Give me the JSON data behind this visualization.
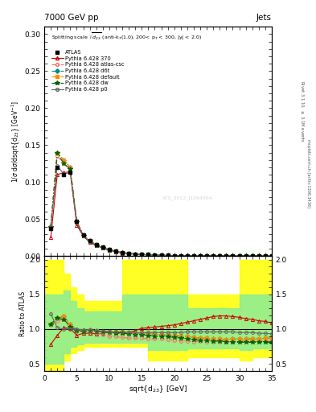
{
  "title_top": "7000 GeV pp",
  "title_right": "Jets",
  "watermark": "ATS_2012_I1094564",
  "x": [
    1,
    2,
    3,
    4,
    5,
    6,
    7,
    8,
    9,
    10,
    11,
    12,
    13,
    14,
    15,
    16,
    17,
    18,
    19,
    20,
    21,
    22,
    23,
    24,
    25,
    26,
    27,
    28,
    29,
    30,
    31,
    32,
    33,
    34,
    35
  ],
  "atlas_y": [
    0.037,
    0.12,
    0.11,
    0.113,
    0.047,
    0.029,
    0.021,
    0.016,
    0.012,
    0.009,
    0.007,
    0.005,
    0.004,
    0.003,
    0.002,
    0.002,
    0.0015,
    0.001,
    0.001,
    0.0008,
    0.0006,
    0.0005,
    0.0004,
    0.0003,
    0.0003,
    0.0002,
    0.0002,
    0.0001,
    0.0001,
    0.0001,
    0.0001,
    0.0001,
    0.0001,
    0.0001,
    0.0001
  ],
  "p370_y": [
    0.025,
    0.11,
    0.113,
    0.114,
    0.042,
    0.027,
    0.019,
    0.014,
    0.011,
    0.008,
    0.006,
    0.004,
    0.003,
    0.003,
    0.002,
    0.0018,
    0.0014,
    0.001,
    0.0009,
    0.0007,
    0.0006,
    0.0005,
    0.0004,
    0.0003,
    0.0003,
    0.0002,
    0.0002,
    0.0001,
    0.0001,
    0.0001,
    0.0001,
    0.0001,
    0.0001,
    0.0001,
    0.0001
  ],
  "atlas_csc_y": [
    0.04,
    0.135,
    0.125,
    0.116,
    0.046,
    0.028,
    0.02,
    0.015,
    0.011,
    0.008,
    0.006,
    0.005,
    0.003,
    0.003,
    0.002,
    0.0017,
    0.0013,
    0.001,
    0.0008,
    0.0006,
    0.0005,
    0.0004,
    0.0003,
    0.0003,
    0.0002,
    0.0002,
    0.0001,
    0.0001,
    0.0001,
    0.0001,
    0.0001,
    0.0001,
    0.0001,
    0.0001,
    0.0001
  ],
  "d6t_y": [
    0.04,
    0.14,
    0.13,
    0.12,
    0.047,
    0.029,
    0.021,
    0.016,
    0.012,
    0.009,
    0.007,
    0.005,
    0.004,
    0.003,
    0.002,
    0.002,
    0.0015,
    0.001,
    0.001,
    0.0008,
    0.0006,
    0.0005,
    0.0004,
    0.0003,
    0.0003,
    0.0002,
    0.0002,
    0.0001,
    0.0001,
    0.0001,
    0.0001,
    0.0001,
    0.0001,
    0.0001,
    0.0001
  ],
  "default_y": [
    0.04,
    0.14,
    0.13,
    0.12,
    0.047,
    0.029,
    0.021,
    0.016,
    0.012,
    0.009,
    0.007,
    0.005,
    0.004,
    0.003,
    0.002,
    0.002,
    0.0015,
    0.001,
    0.001,
    0.0008,
    0.0006,
    0.0005,
    0.0004,
    0.0003,
    0.0003,
    0.0002,
    0.0002,
    0.0001,
    0.0001,
    0.0001,
    0.0001,
    0.0001,
    0.0001,
    0.0001,
    0.0001
  ],
  "dw_y": [
    0.04,
    0.14,
    0.125,
    0.118,
    0.046,
    0.028,
    0.02,
    0.015,
    0.011,
    0.008,
    0.006,
    0.005,
    0.003,
    0.003,
    0.002,
    0.0017,
    0.0013,
    0.001,
    0.0008,
    0.0006,
    0.0005,
    0.0004,
    0.0003,
    0.0003,
    0.0002,
    0.0002,
    0.0001,
    0.0001,
    0.0001,
    0.0001,
    0.0001,
    0.0001,
    0.0001,
    0.0001,
    0.0001
  ],
  "p0_y": [
    0.04,
    0.122,
    0.111,
    0.113,
    0.046,
    0.028,
    0.02,
    0.015,
    0.011,
    0.0085,
    0.0065,
    0.005,
    0.0038,
    0.003,
    0.002,
    0.0018,
    0.0013,
    0.001,
    0.0008,
    0.0006,
    0.0005,
    0.0004,
    0.0003,
    0.0003,
    0.0002,
    0.0002,
    0.0001,
    0.0001,
    0.0001,
    0.0001,
    0.0001,
    0.0001,
    0.0001,
    0.0001,
    0.0001
  ],
  "ratio_370": [
    0.78,
    0.91,
    1.02,
    1.01,
    0.91,
    0.94,
    0.94,
    0.93,
    0.94,
    0.96,
    0.95,
    0.95,
    0.95,
    0.98,
    1.01,
    1.02,
    1.03,
    1.04,
    1.05,
    1.06,
    1.08,
    1.1,
    1.12,
    1.14,
    1.16,
    1.18,
    1.19,
    1.19,
    1.18,
    1.17,
    1.15,
    1.14,
    1.12,
    1.11,
    1.09
  ],
  "ratio_atlas_csc": [
    1.07,
    1.12,
    1.14,
    1.03,
    0.97,
    0.96,
    0.96,
    0.95,
    0.92,
    0.9,
    0.89,
    0.88,
    0.87,
    0.87,
    0.87,
    0.86,
    0.86,
    0.86,
    0.85,
    0.84,
    0.83,
    0.83,
    0.82,
    0.83,
    0.82,
    0.82,
    0.82,
    0.82,
    0.82,
    0.83,
    0.83,
    0.83,
    0.83,
    0.83,
    0.83
  ],
  "ratio_d6t": [
    1.07,
    1.16,
    1.18,
    1.07,
    0.99,
    0.98,
    0.99,
    0.98,
    0.97,
    0.96,
    0.96,
    0.96,
    0.95,
    0.94,
    0.94,
    0.94,
    0.93,
    0.92,
    0.92,
    0.91,
    0.9,
    0.89,
    0.88,
    0.87,
    0.87,
    0.86,
    0.86,
    0.85,
    0.86,
    0.86,
    0.86,
    0.86,
    0.86,
    0.87,
    0.87
  ],
  "ratio_default": [
    1.07,
    1.16,
    1.18,
    1.07,
    0.99,
    0.98,
    0.99,
    0.98,
    0.97,
    0.96,
    0.96,
    0.96,
    0.95,
    0.94,
    0.94,
    0.94,
    0.93,
    0.92,
    0.92,
    0.91,
    0.9,
    0.89,
    0.88,
    0.87,
    0.87,
    0.86,
    0.86,
    0.85,
    0.86,
    0.86,
    0.86,
    0.86,
    0.86,
    0.87,
    0.87
  ],
  "ratio_dw": [
    1.07,
    1.16,
    1.14,
    1.04,
    0.98,
    0.97,
    0.98,
    0.97,
    0.96,
    0.95,
    0.94,
    0.94,
    0.93,
    0.92,
    0.92,
    0.91,
    0.9,
    0.89,
    0.89,
    0.88,
    0.87,
    0.86,
    0.85,
    0.84,
    0.84,
    0.83,
    0.83,
    0.82,
    0.81,
    0.81,
    0.81,
    0.81,
    0.81,
    0.81,
    0.81
  ],
  "ratio_p0": [
    1.22,
    1.02,
    1.0,
    1.0,
    1.0,
    0.99,
    0.99,
    0.98,
    0.97,
    0.96,
    0.96,
    0.96,
    0.95,
    0.95,
    0.95,
    0.95,
    0.95,
    0.95,
    0.95,
    0.95,
    0.95,
    0.96,
    0.96,
    0.96,
    0.96,
    0.96,
    0.96,
    0.96,
    0.96,
    0.95,
    0.95,
    0.95,
    0.94,
    0.94,
    0.93
  ],
  "yellow_band_x": [
    0,
    1,
    2,
    3,
    4,
    5,
    6,
    8,
    10,
    12,
    14,
    16,
    18,
    20,
    22,
    24,
    26,
    28,
    30,
    32,
    34,
    36
  ],
  "yellow_band_low": [
    0.4,
    0.4,
    0.4,
    0.55,
    0.65,
    0.7,
    0.75,
    0.75,
    0.75,
    0.75,
    0.75,
    0.55,
    0.55,
    0.55,
    0.6,
    0.6,
    0.6,
    0.6,
    0.55,
    0.6,
    0.6,
    0.6
  ],
  "yellow_band_high": [
    2.0,
    2.0,
    2.0,
    1.8,
    1.6,
    1.5,
    1.4,
    1.4,
    1.4,
    2.0,
    2.0,
    2.0,
    2.0,
    2.0,
    1.5,
    1.5,
    1.5,
    1.5,
    2.0,
    2.0,
    2.0,
    2.0
  ],
  "green_band_low": [
    0.5,
    0.5,
    0.5,
    0.65,
    0.75,
    0.78,
    0.8,
    0.8,
    0.8,
    0.8,
    0.8,
    0.7,
    0.7,
    0.7,
    0.72,
    0.72,
    0.72,
    0.72,
    0.7,
    0.72,
    0.72,
    0.72
  ],
  "green_band_high": [
    1.5,
    1.5,
    1.5,
    1.55,
    1.4,
    1.3,
    1.25,
    1.25,
    1.25,
    1.5,
    1.5,
    1.5,
    1.5,
    1.5,
    1.3,
    1.3,
    1.3,
    1.3,
    1.5,
    1.5,
    1.5,
    1.5
  ],
  "color_370": "#cc0000",
  "color_atlas_csc": "#ff6666",
  "color_d6t": "#008b8b",
  "color_default": "#ff8c00",
  "color_dw": "#006400",
  "color_p0": "#666666",
  "color_atlas": "#000000",
  "ylim_main": [
    0,
    0.31
  ],
  "ylim_ratio": [
    0.4,
    2.05
  ],
  "xlim": [
    0,
    35
  ],
  "yticks_main": [
    0.0,
    0.05,
    0.1,
    0.15,
    0.2,
    0.25,
    0.3
  ],
  "yticks_ratio": [
    0.5,
    1.0,
    1.5,
    2.0
  ]
}
